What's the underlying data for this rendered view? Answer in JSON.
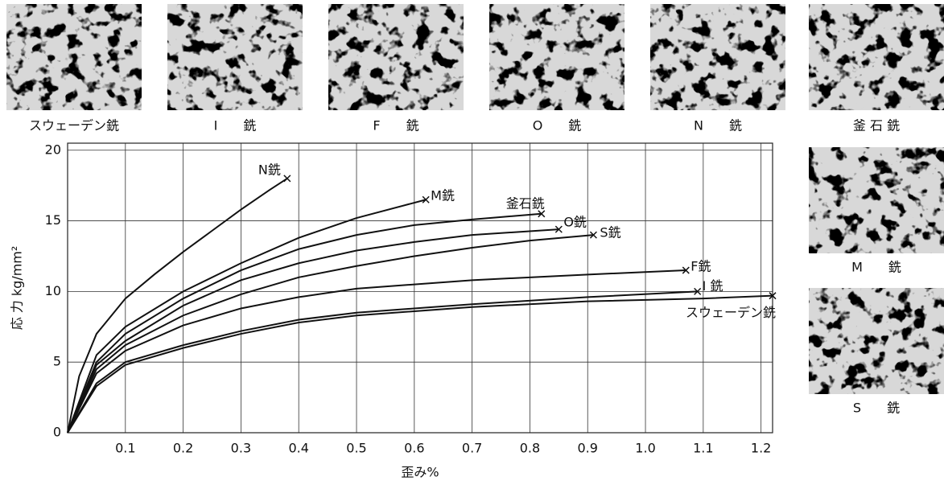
{
  "chart_data": {
    "type": "line",
    "x_label": "歪み%",
    "y_label": "応 力 kg/mm²",
    "xlim": [
      0,
      1.22
    ],
    "ylim": [
      0,
      20.5
    ],
    "xticks": [
      0.1,
      0.2,
      0.3,
      0.4,
      0.5,
      0.6,
      0.7,
      0.8,
      0.9,
      {
        "value": 1,
        "label": "1.0"
      },
      1.1,
      1.2
    ],
    "yticks": [
      0,
      5,
      10,
      15,
      20
    ],
    "grid": true,
    "color": "#111111",
    "series": [
      {
        "name": "N銑",
        "x": [
          0,
          0.02,
          0.05,
          0.1,
          0.15,
          0.2,
          0.25,
          0.3,
          0.35,
          0.38
        ],
        "values": [
          0,
          4,
          7,
          9.5,
          11.2,
          12.8,
          14.3,
          15.8,
          17.2,
          18
        ]
      },
      {
        "name": "M銑",
        "x": [
          0,
          0.05,
          0.1,
          0.2,
          0.3,
          0.4,
          0.5,
          0.62
        ],
        "values": [
          0,
          5.5,
          7.5,
          10,
          12,
          13.8,
          15.2,
          16.5
        ]
      },
      {
        "name": "釜石銑",
        "x": [
          0,
          0.05,
          0.1,
          0.2,
          0.3,
          0.4,
          0.5,
          0.6,
          0.7,
          0.82
        ],
        "values": [
          0,
          5,
          7,
          9.5,
          11.5,
          13,
          14,
          14.7,
          15.1,
          15.5
        ]
      },
      {
        "name": "O銑",
        "x": [
          0,
          0.05,
          0.1,
          0.2,
          0.3,
          0.4,
          0.5,
          0.6,
          0.7,
          0.85
        ],
        "values": [
          0,
          4.8,
          6.5,
          9,
          10.8,
          12,
          12.9,
          13.5,
          14,
          14.4
        ]
      },
      {
        "name": "S銑",
        "x": [
          0,
          0.05,
          0.1,
          0.2,
          0.3,
          0.4,
          0.5,
          0.6,
          0.7,
          0.8,
          0.91
        ],
        "values": [
          0,
          4.5,
          6.2,
          8.3,
          9.8,
          11,
          11.8,
          12.5,
          13.1,
          13.6,
          14
        ]
      },
      {
        "name": "F銑",
        "x": [
          0,
          0.05,
          0.1,
          0.2,
          0.3,
          0.4,
          0.5,
          0.7,
          0.9,
          1.07
        ],
        "values": [
          0,
          4.2,
          5.8,
          7.6,
          8.8,
          9.6,
          10.2,
          10.8,
          11.2,
          11.5
        ]
      },
      {
        "name": "I 銑",
        "x": [
          0,
          0.05,
          0.1,
          0.2,
          0.3,
          0.4,
          0.5,
          0.7,
          0.9,
          1.09
        ],
        "values": [
          0,
          3.5,
          5,
          6.2,
          7.2,
          8,
          8.5,
          9.1,
          9.6,
          10
        ]
      },
      {
        "name": "スウェーデン銑",
        "x": [
          0,
          0.05,
          0.1,
          0.2,
          0.3,
          0.4,
          0.5,
          0.7,
          0.9,
          1.1,
          1.22
        ],
        "values": [
          0,
          3.3,
          4.8,
          6,
          7,
          7.8,
          8.3,
          8.9,
          9.3,
          9.5,
          9.7
        ]
      }
    ]
  },
  "micrographs": [
    {
      "label": "スウェーデン銑"
    },
    {
      "label": "I　　銑"
    },
    {
      "label": "F　　銑"
    },
    {
      "label": "O　　銑"
    },
    {
      "label": "N　　銑"
    },
    {
      "label": "釜 石 銑"
    },
    {
      "label": "M　　銑"
    },
    {
      "label": "S　　銑"
    }
  ]
}
